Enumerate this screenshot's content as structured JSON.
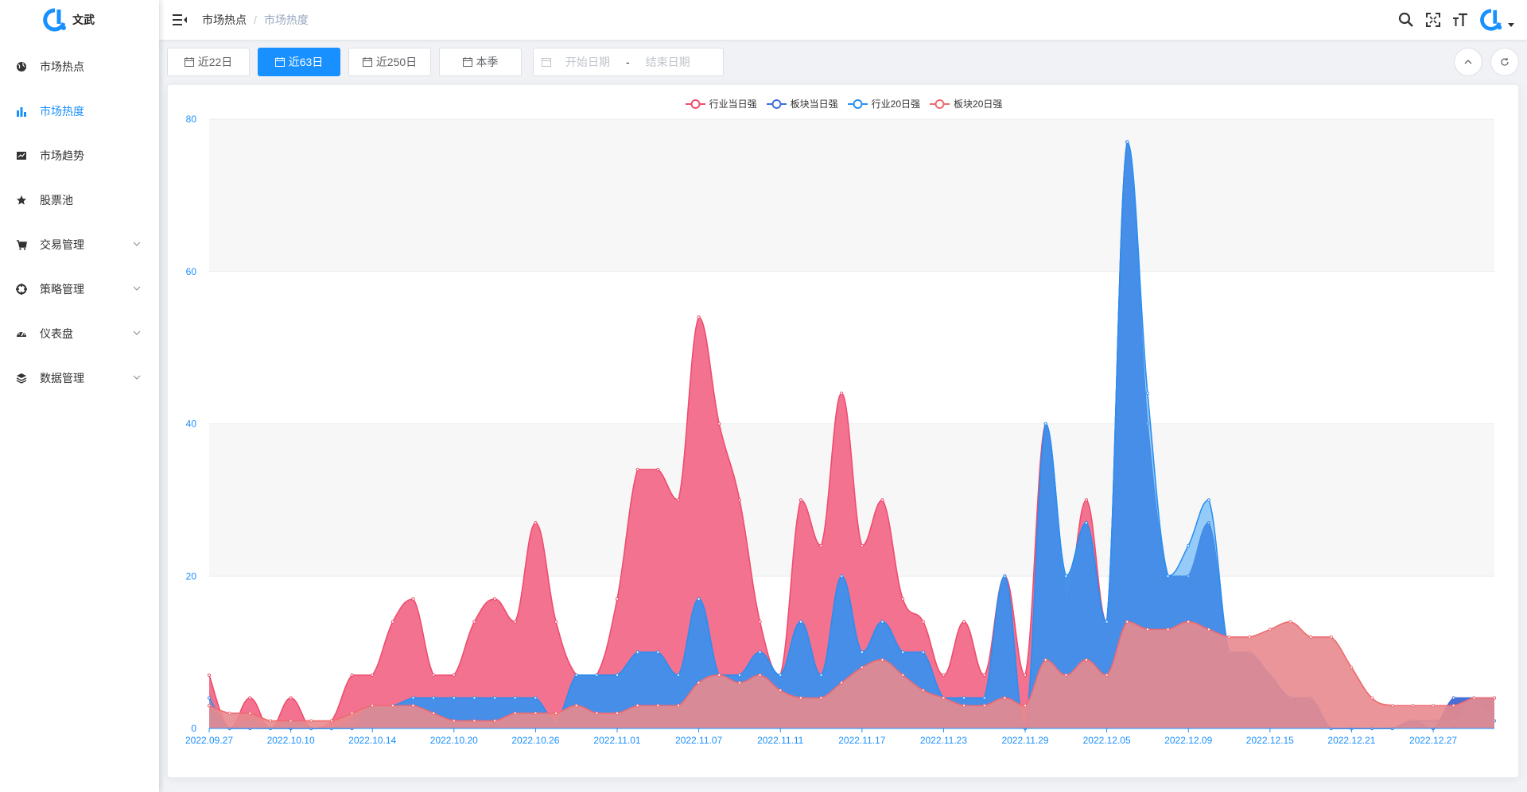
{
  "app": {
    "logo_text": "文武"
  },
  "sidebar": {
    "items": [
      {
        "label": "市场热点",
        "icon": "globe-icon",
        "active": false,
        "expandable": false
      },
      {
        "label": "市场热度",
        "icon": "bar-chart-icon",
        "active": true,
        "expandable": false
      },
      {
        "label": "市场趋势",
        "icon": "trend-card-icon",
        "active": false,
        "expandable": false
      },
      {
        "label": "股票池",
        "icon": "star-icon",
        "active": false,
        "expandable": false
      },
      {
        "label": "交易管理",
        "icon": "cart-icon",
        "active": false,
        "expandable": true
      },
      {
        "label": "策略管理",
        "icon": "crosshair-icon",
        "active": false,
        "expandable": true
      },
      {
        "label": "仪表盘",
        "icon": "dashboard-icon",
        "active": false,
        "expandable": true
      },
      {
        "label": "数据管理",
        "icon": "layers-icon",
        "active": false,
        "expandable": true
      }
    ]
  },
  "header": {
    "breadcrumb": [
      "市场热点",
      "市场热度"
    ],
    "breadcrumb_separator": "/"
  },
  "toolbar": {
    "buttons": [
      {
        "label": "近22日",
        "active": false
      },
      {
        "label": "近63日",
        "active": true
      },
      {
        "label": "近250日",
        "active": false
      },
      {
        "label": "本季",
        "active": false
      }
    ],
    "date_range": {
      "start_placeholder": "开始日期",
      "separator": "-",
      "end_placeholder": "结束日期"
    }
  },
  "colors": {
    "accent": "#1890ff",
    "series": [
      "#ee4d6e",
      "#4e72d4",
      "#2a8ff0",
      "#ee6a6f"
    ],
    "axis_label": "#1890ff"
  },
  "chart_data": {
    "type": "area",
    "smooth": true,
    "legend_position": "top-center",
    "grid": "horizontal-split-areas",
    "ylim": [
      0,
      80
    ],
    "yticks": [
      0,
      20,
      40,
      60,
      80
    ],
    "x_tick_labels": [
      "2022.09.27",
      "2022.10.10",
      "2022.10.14",
      "2022.10.20",
      "2022.10.26",
      "2022.11.01",
      "2022.11.07",
      "2022.11.11",
      "2022.11.17",
      "2022.11.23",
      "2022.11.29",
      "2022.12.05",
      "2022.12.09",
      "2022.12.15",
      "2022.12.21",
      "2022.12.27"
    ],
    "x_tick_every": 4,
    "series": [
      {
        "name": "行业当日强",
        "color": "#ee4d6e",
        "fill": "#f26a8a",
        "opacity": 0.95,
        "values": [
          7,
          0,
          4,
          0,
          4,
          0,
          1,
          7,
          7,
          14,
          17,
          7,
          7,
          14,
          17,
          14,
          27,
          14,
          7,
          7,
          17,
          34,
          34,
          30,
          54,
          40,
          30,
          14,
          7,
          30,
          24,
          44,
          24,
          30,
          17,
          14,
          7,
          14,
          7,
          20,
          7,
          40,
          17,
          30,
          14,
          77,
          40,
          20,
          20,
          27,
          10,
          10,
          7,
          4,
          4,
          0,
          0,
          0,
          0,
          1,
          0,
          4,
          4,
          4
        ]
      },
      {
        "name": "板块当日强",
        "color": "#3f6fd8",
        "fill": "#3f6fd8",
        "opacity": 0.95,
        "values": [
          3,
          0,
          0,
          0,
          0,
          0,
          0,
          0,
          3,
          3,
          4,
          4,
          4,
          4,
          4,
          4,
          4,
          1,
          7,
          7,
          7,
          10,
          10,
          7,
          17,
          7,
          7,
          10,
          7,
          14,
          7,
          20,
          10,
          14,
          10,
          10,
          4,
          4,
          4,
          20,
          0,
          40,
          20,
          27,
          14,
          77,
          40,
          20,
          20,
          27,
          10,
          10,
          7,
          4,
          4,
          0,
          0,
          0,
          0,
          1,
          0,
          4,
          4,
          4
        ]
      },
      {
        "name": "行业20日强",
        "color": "#2a8ff0",
        "fill": "#45a7f7",
        "opacity": 0.55,
        "values": [
          4,
          0,
          1,
          0,
          1,
          0,
          0,
          1,
          3,
          3,
          4,
          4,
          4,
          4,
          4,
          4,
          4,
          1,
          7,
          7,
          7,
          10,
          10,
          7,
          17,
          7,
          7,
          10,
          7,
          14,
          7,
          20,
          10,
          14,
          10,
          10,
          4,
          4,
          4,
          20,
          0,
          40,
          20,
          27,
          14,
          77,
          44,
          20,
          24,
          30,
          10,
          10,
          7,
          4,
          4,
          0,
          0,
          0,
          0,
          1,
          1,
          1,
          4,
          1
        ]
      },
      {
        "name": "板块20日强",
        "color": "#ee6a6f",
        "fill": "#e88a8e",
        "opacity": 0.9,
        "values": [
          3,
          2,
          2,
          1,
          1,
          1,
          1,
          2,
          3,
          3,
          3,
          2,
          1,
          1,
          1,
          2,
          2,
          2,
          3,
          2,
          2,
          3,
          3,
          3,
          6,
          7,
          6,
          7,
          5,
          4,
          4,
          6,
          8,
          9,
          7,
          5,
          4,
          3,
          3,
          4,
          3,
          9,
          7,
          9,
          7,
          14,
          13,
          13,
          14,
          13,
          12,
          12,
          13,
          14,
          12,
          12,
          8,
          4,
          3,
          3,
          3,
          3,
          4,
          4
        ]
      }
    ]
  }
}
